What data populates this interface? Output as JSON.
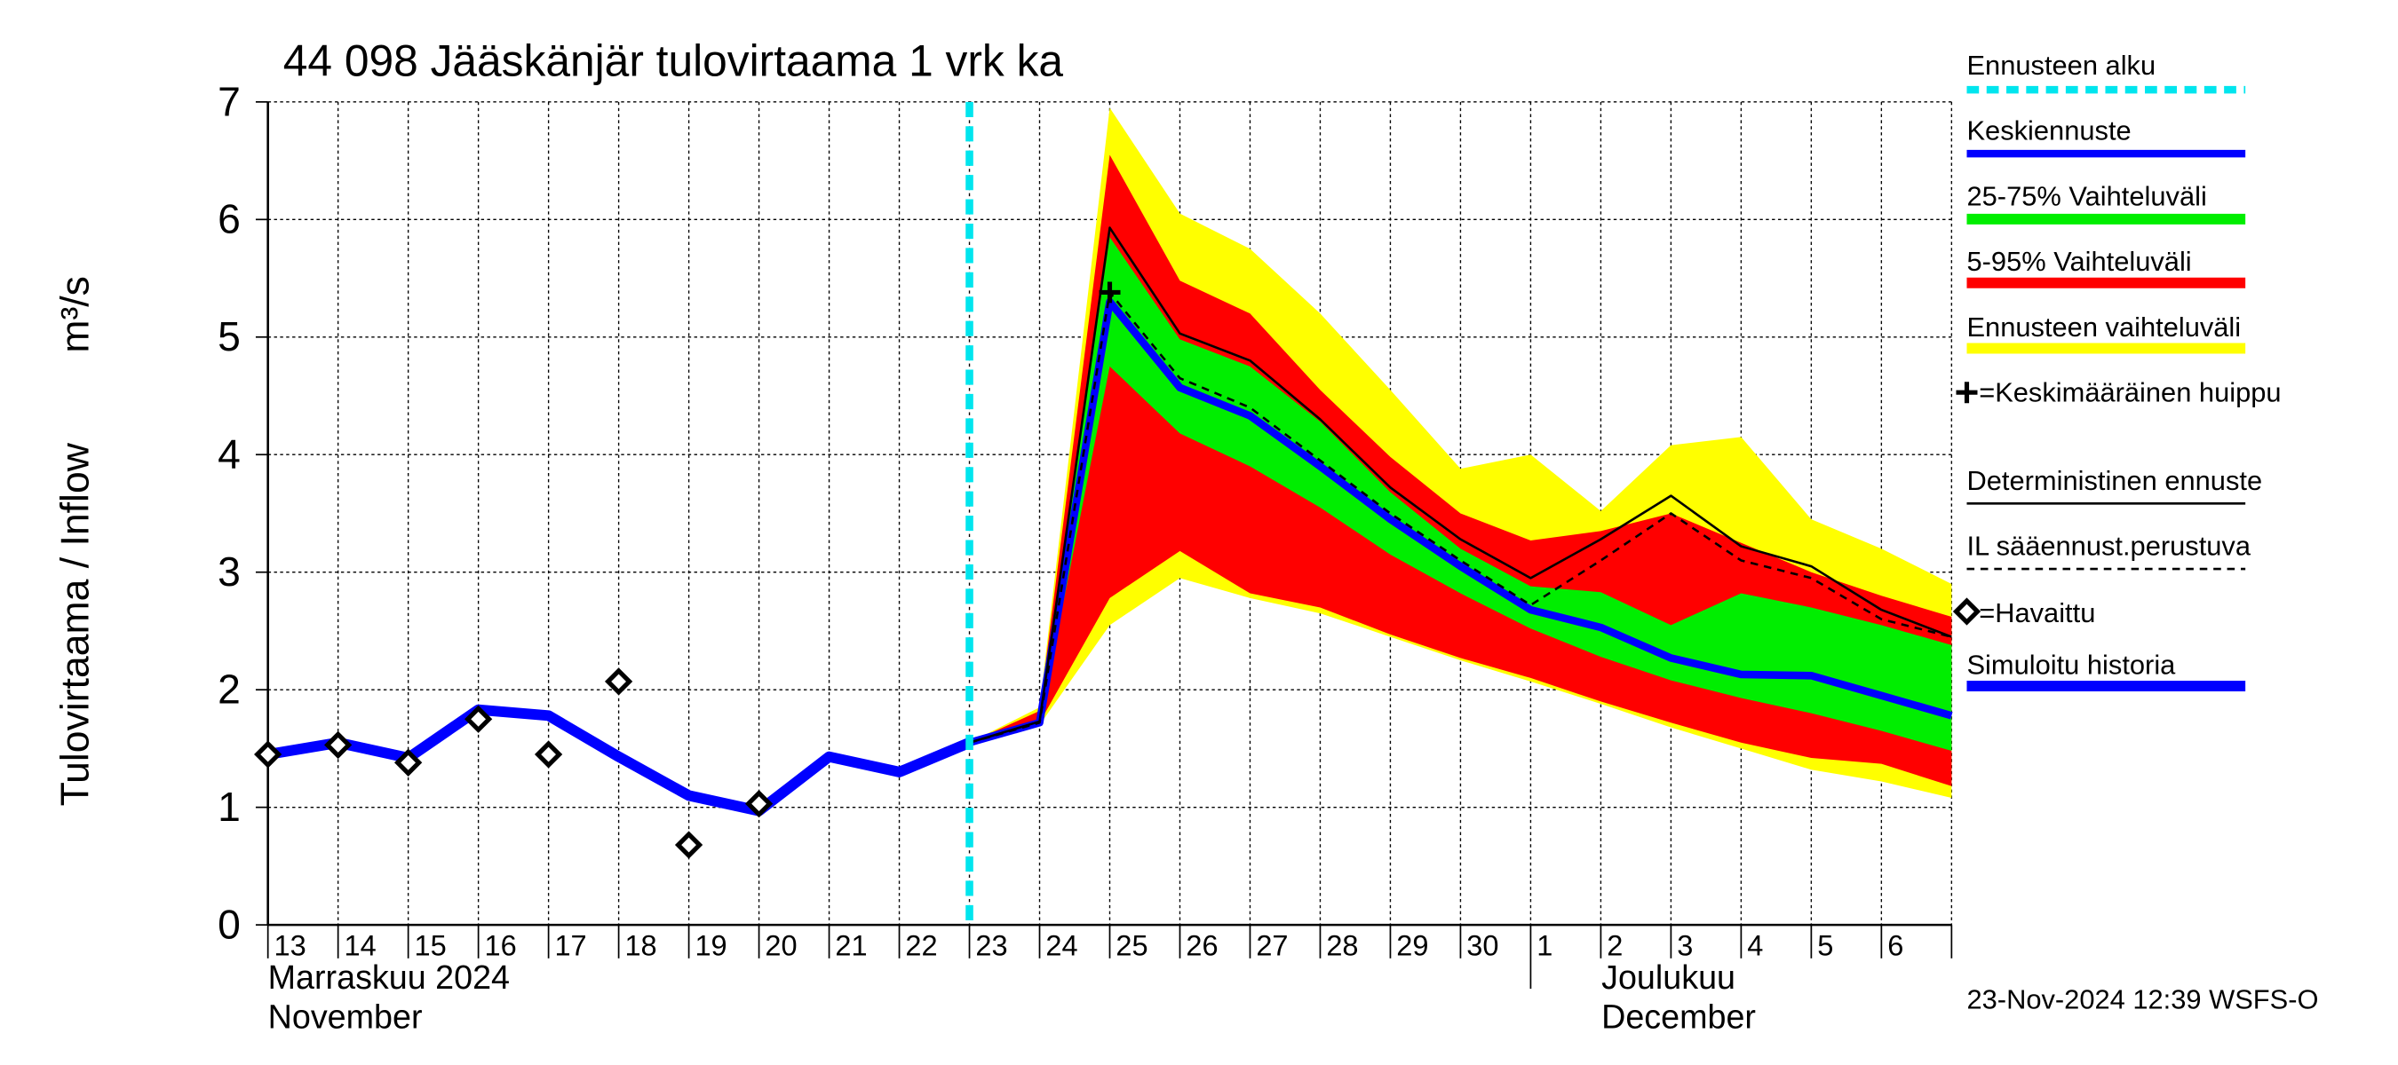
{
  "chart_data": {
    "type": "line",
    "title": "44 098 Jääskänjär tulovirtaama 1 vrk ka",
    "y_label": "Tulovirtaama / Inflow",
    "y_unit": "m³/s",
    "categories": [
      "13",
      "14",
      "15",
      "16",
      "17",
      "18",
      "19",
      "20",
      "21",
      "22",
      "23",
      "24",
      "25",
      "26",
      "27",
      "28",
      "29",
      "30",
      "1",
      "2",
      "3",
      "4",
      "5",
      "6",
      null
    ],
    "month_labels": [
      "Marraskuu 2024",
      "November",
      "Joulukuu",
      "December"
    ],
    "ylim": [
      0,
      7
    ],
    "yticks": [
      0,
      1,
      2,
      3,
      4,
      5,
      6,
      7
    ],
    "grid": true,
    "forecast_start": {
      "name": "Ennusteen alku",
      "category": "23",
      "color": "#00e5ee"
    },
    "mean_peak": {
      "name": "=Keskimääräinen huippu",
      "category": "25",
      "value": 5.38
    },
    "bands": [
      {
        "name": "Ennusteen vaihteluväli",
        "color": "#ffff00",
        "high": [
          null,
          null,
          null,
          null,
          null,
          null,
          null,
          null,
          null,
          null,
          1.55,
          1.85,
          6.95,
          6.05,
          5.75,
          5.2,
          4.55,
          3.88,
          4.0,
          3.52,
          4.08,
          4.15,
          3.45,
          3.2,
          2.9
        ],
        "low": [
          null,
          null,
          null,
          null,
          null,
          null,
          null,
          null,
          null,
          null,
          1.55,
          1.7,
          2.55,
          2.95,
          2.78,
          2.65,
          2.45,
          2.25,
          2.07,
          1.88,
          1.68,
          1.5,
          1.32,
          1.22,
          1.08
        ]
      },
      {
        "name": "5-95% Vaihteluväli",
        "color": "#ff0000",
        "high": [
          null,
          null,
          null,
          null,
          null,
          null,
          null,
          null,
          null,
          null,
          1.55,
          1.82,
          6.55,
          5.48,
          5.2,
          4.55,
          3.98,
          3.5,
          3.27,
          3.35,
          3.5,
          3.25,
          3.0,
          2.8,
          2.62
        ],
        "low": [
          null,
          null,
          null,
          null,
          null,
          null,
          null,
          null,
          null,
          null,
          1.55,
          1.72,
          2.78,
          3.18,
          2.82,
          2.7,
          2.47,
          2.27,
          2.1,
          1.9,
          1.72,
          1.55,
          1.42,
          1.37,
          1.18
        ]
      },
      {
        "name": "25-75% Vaihteluväli",
        "color": "#00ee00",
        "high": [
          null,
          null,
          null,
          null,
          null,
          null,
          null,
          null,
          null,
          null,
          1.55,
          1.74,
          5.85,
          4.98,
          4.75,
          4.28,
          3.68,
          3.2,
          2.88,
          2.83,
          2.55,
          2.82,
          2.7,
          2.55,
          2.38
        ],
        "low": [
          null,
          null,
          null,
          null,
          null,
          null,
          null,
          null,
          null,
          null,
          1.55,
          1.71,
          4.75,
          4.18,
          3.9,
          3.55,
          3.15,
          2.82,
          2.52,
          2.28,
          2.08,
          1.93,
          1.8,
          1.65,
          1.48
        ]
      }
    ],
    "series": [
      {
        "name": "Simuloitu historia",
        "color": "#0000ff",
        "width": 7,
        "values": [
          1.45,
          1.55,
          1.42,
          1.83,
          1.78,
          1.43,
          1.1,
          0.97,
          1.43,
          1.3,
          1.55,
          null,
          null,
          null,
          null,
          null,
          null,
          null,
          null,
          null,
          null,
          null,
          null,
          null,
          null
        ]
      },
      {
        "name": "Keskiennuste",
        "color": "#0000ff",
        "width": 5,
        "values": [
          null,
          null,
          null,
          null,
          null,
          null,
          null,
          null,
          null,
          null,
          1.55,
          1.72,
          5.3,
          4.57,
          4.33,
          3.9,
          3.45,
          3.05,
          2.68,
          2.53,
          2.27,
          2.13,
          2.12,
          1.95,
          1.78
        ]
      },
      {
        "name": "Deterministinen ennuste",
        "color": "#000000",
        "width": 1.5,
        "values": [
          null,
          null,
          null,
          null,
          null,
          null,
          null,
          null,
          null,
          null,
          1.55,
          1.73,
          5.93,
          5.03,
          4.8,
          4.3,
          3.72,
          3.28,
          2.95,
          3.28,
          3.65,
          3.22,
          3.05,
          2.68,
          2.45
        ]
      },
      {
        "name": "IL sääennust.perustuva",
        "color": "#000000",
        "width": 1.5,
        "dash": true,
        "values": [
          null,
          null,
          null,
          null,
          null,
          null,
          null,
          null,
          null,
          null,
          1.55,
          1.72,
          5.38,
          4.65,
          4.4,
          3.95,
          3.5,
          3.1,
          2.72,
          3.1,
          3.5,
          3.1,
          2.95,
          2.6,
          2.45
        ]
      },
      {
        "name": "=Havaittu",
        "color": "#000000",
        "marker": "diamond",
        "values": [
          1.45,
          1.53,
          1.38,
          1.75,
          1.45,
          2.07,
          0.68,
          1.03,
          null,
          null,
          null,
          null,
          null,
          null,
          null,
          null,
          null,
          null,
          null,
          null,
          null,
          null,
          null,
          null,
          null
        ]
      }
    ],
    "timestamp": "23-Nov-2024 12:39 WSFS-O"
  }
}
